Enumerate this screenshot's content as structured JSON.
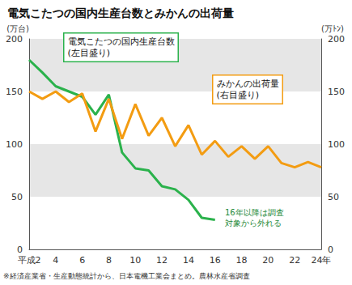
{
  "chart_data": {
    "type": "line",
    "title": "電気こたつの国内生産台数とみかんの出荷量",
    "ylabel": "(万台)",
    "y2label": "(万ﾄﾝ)",
    "categories": [
      "平成2",
      null,
      "4",
      null,
      "6",
      null,
      "8",
      null,
      "10",
      null,
      "12",
      null,
      "14",
      null,
      "16",
      null,
      "18",
      null,
      "20",
      null,
      "22",
      null,
      "24年"
    ],
    "series": [
      {
        "color": "#2bb24c",
        "axis": "y",
        "values": [
          180,
          168,
          155,
          150,
          145,
          128,
          147,
          92,
          77,
          75,
          60,
          57,
          47,
          30,
          28,
          null,
          null,
          null,
          null,
          null,
          null,
          null,
          null
        ]
      },
      {
        "color": "#f39c12",
        "axis": "y2",
        "values": [
          150,
          143,
          150,
          140,
          148,
          112,
          143,
          105,
          138,
          108,
          125,
          98,
          118,
          90,
          103,
          88,
          98,
          86,
          98,
          82,
          78,
          83,
          78
        ]
      }
    ],
    "ylim": [
      0,
      200
    ],
    "yticks": [
      0,
      50,
      100,
      150,
      200
    ],
    "y2lim": [
      0,
      200
    ],
    "y2ticks": [
      0,
      50,
      100,
      150,
      200
    ],
    "grid": true,
    "annotations": [
      "電気こたつの国内生産台数\n(左目盛り)",
      "みかんの出荷量\n(右目盛り)",
      "16年以降は調査\n対象から外れる",
      "※経済産業省・生産動態統計から、日本電機工業会まとめ。農林水産省調査"
    ]
  }
}
